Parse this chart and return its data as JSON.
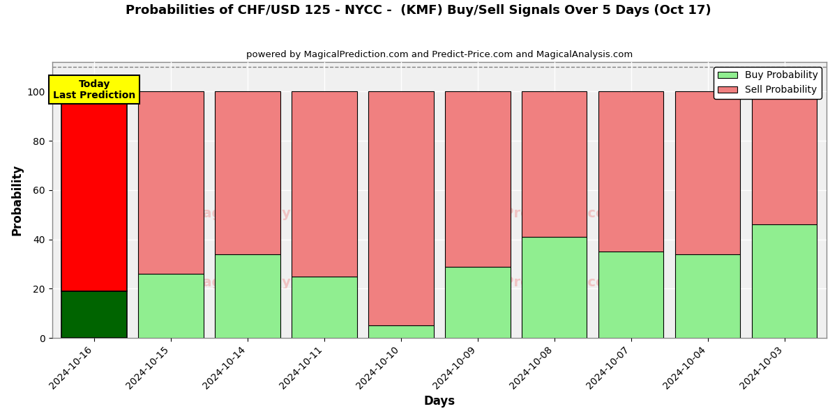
{
  "title": "Probabilities of CHF/USD 125 - NYCC -  (KMF) Buy/Sell Signals Over 5 Days (Oct 17)",
  "subtitle": "powered by MagicalPrediction.com and Predict-Price.com and MagicalAnalysis.com",
  "xlabel": "Days",
  "ylabel": "Probability",
  "categories": [
    "2024-10-16",
    "2024-10-15",
    "2024-10-14",
    "2024-10-11",
    "2024-10-10",
    "2024-10-09",
    "2024-10-08",
    "2024-10-07",
    "2024-10-04",
    "2024-10-03"
  ],
  "buy_values": [
    19,
    26,
    34,
    25,
    5,
    29,
    41,
    35,
    34,
    46
  ],
  "sell_values": [
    81,
    74,
    66,
    75,
    95,
    71,
    59,
    65,
    66,
    54
  ],
  "today_buy_color": "#006400",
  "today_sell_color": "#ff0000",
  "buy_color": "#90ee90",
  "sell_color": "#f08080",
  "today_index": 0,
  "ylim": [
    0,
    112
  ],
  "yticks": [
    0,
    20,
    40,
    60,
    80,
    100
  ],
  "dashed_line_y": 110,
  "today_label": "Today\nLast Prediction",
  "legend_buy": "Buy Probability",
  "legend_sell": "Sell Probability",
  "bg_color": "#ffffff",
  "plot_bg_color": "#f0f0f0",
  "grid_color": "#ffffff",
  "bar_edge_color": "#000000",
  "bar_width": 0.85
}
